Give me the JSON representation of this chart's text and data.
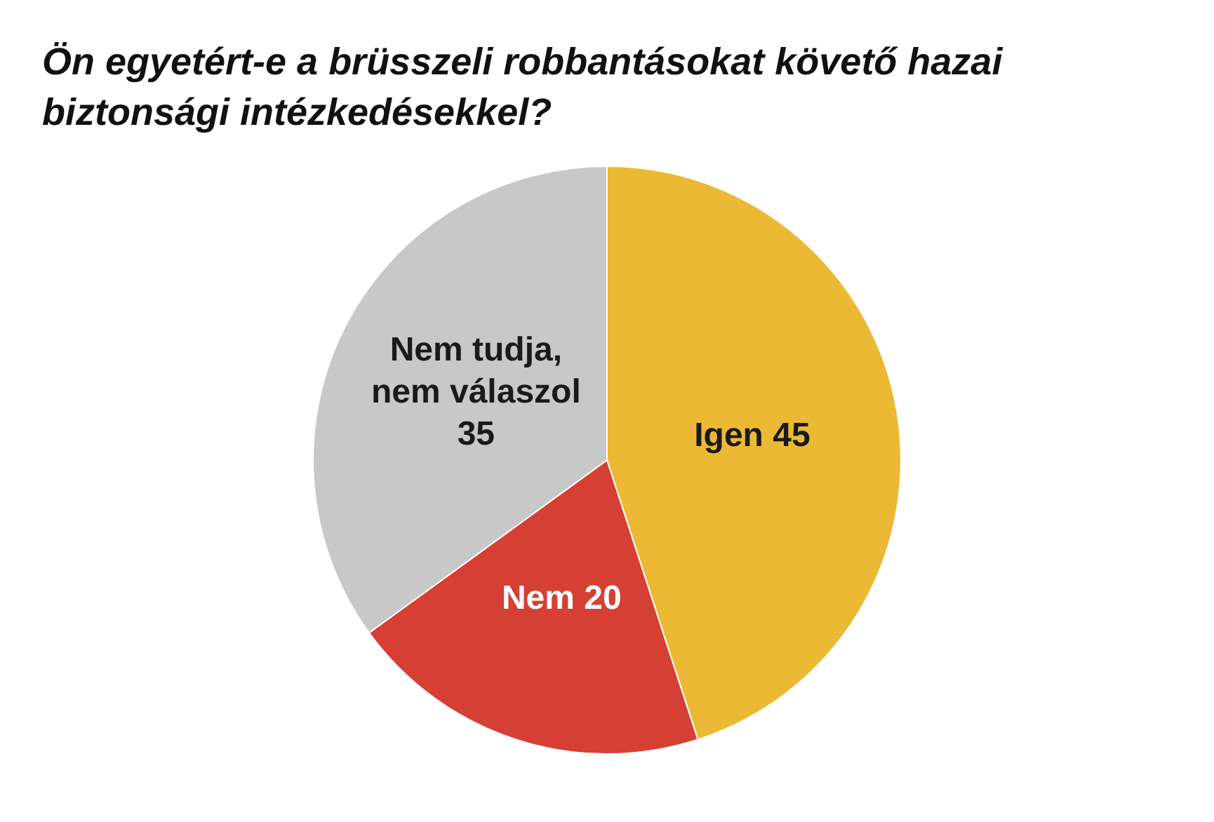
{
  "chart_data": {
    "type": "pie",
    "title": "Ön egyetért-e a brüsszeli robbantásokat követő hazai biztonsági intézkedésekkel?",
    "categories": [
      "Igen",
      "Nem",
      "Nem tudja, nem válaszol"
    ],
    "values": [
      45,
      20,
      35
    ],
    "colors": [
      "#ecb935",
      "#d63f33",
      "#c8c8c8"
    ],
    "data_labels": true
  }
}
